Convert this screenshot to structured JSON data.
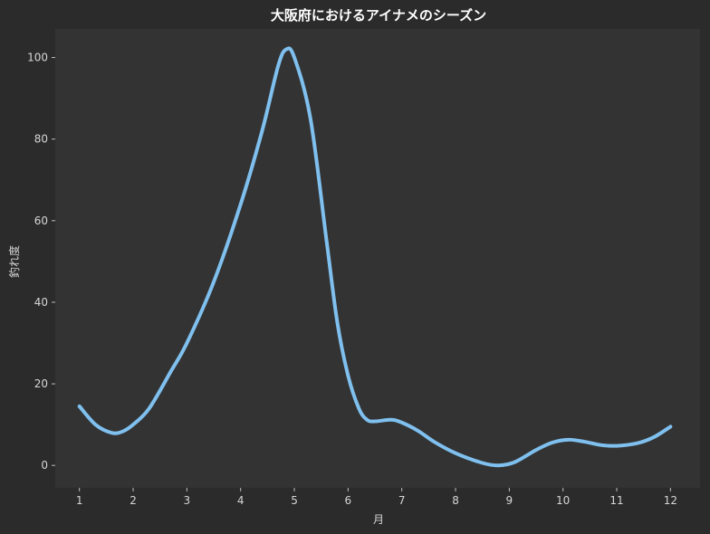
{
  "chart_data": {
    "type": "line",
    "title": "大阪府におけるアイナメのシーズン",
    "xlabel": "月",
    "ylabel": "釣れ度",
    "x": [
      1,
      2,
      3,
      4,
      5,
      6,
      7,
      8,
      9,
      10,
      11,
      12
    ],
    "xticks": [
      "1",
      "2",
      "3",
      "4",
      "5",
      "6",
      "7",
      "8",
      "9",
      "10",
      "11",
      "12"
    ],
    "series": [
      {
        "values": [
          14,
          10,
          30,
          65,
          100,
          25,
          10,
          3,
          0,
          6,
          5,
          9.5
        ]
      }
    ],
    "curve_samples": [
      [
        1.0,
        14.5
      ],
      [
        1.3,
        10
      ],
      [
        1.6,
        8
      ],
      [
        1.8,
        8.3
      ],
      [
        2.0,
        10
      ],
      [
        2.3,
        14
      ],
      [
        2.7,
        23
      ],
      [
        3.0,
        30
      ],
      [
        3.5,
        45
      ],
      [
        4.0,
        64
      ],
      [
        4.4,
        82
      ],
      [
        4.7,
        98
      ],
      [
        4.85,
        102
      ],
      [
        5.0,
        100
      ],
      [
        5.3,
        85
      ],
      [
        5.6,
        55
      ],
      [
        5.8,
        35
      ],
      [
        6.0,
        22
      ],
      [
        6.2,
        14
      ],
      [
        6.35,
        11.2
      ],
      [
        6.5,
        10.8
      ],
      [
        6.8,
        11.2
      ],
      [
        7.0,
        10.5
      ],
      [
        7.3,
        8.5
      ],
      [
        7.6,
        5.8
      ],
      [
        8.0,
        3
      ],
      [
        8.5,
        0.6
      ],
      [
        8.8,
        0
      ],
      [
        9.1,
        0.8
      ],
      [
        9.5,
        3.8
      ],
      [
        9.8,
        5.6
      ],
      [
        10.1,
        6.3
      ],
      [
        10.4,
        5.8
      ],
      [
        10.7,
        5
      ],
      [
        11.0,
        4.8
      ],
      [
        11.4,
        5.5
      ],
      [
        11.7,
        7
      ],
      [
        12.0,
        9.5
      ]
    ],
    "yticks": [
      0,
      20,
      40,
      60,
      80,
      100
    ],
    "xlim": [
      0.55,
      12.55
    ],
    "ylim": [
      -5.5,
      107
    ],
    "grid": false,
    "colors": {
      "line": "#7fc0ef",
      "plot_background": "#333333",
      "figure_background": "#2b2b2b"
    }
  }
}
